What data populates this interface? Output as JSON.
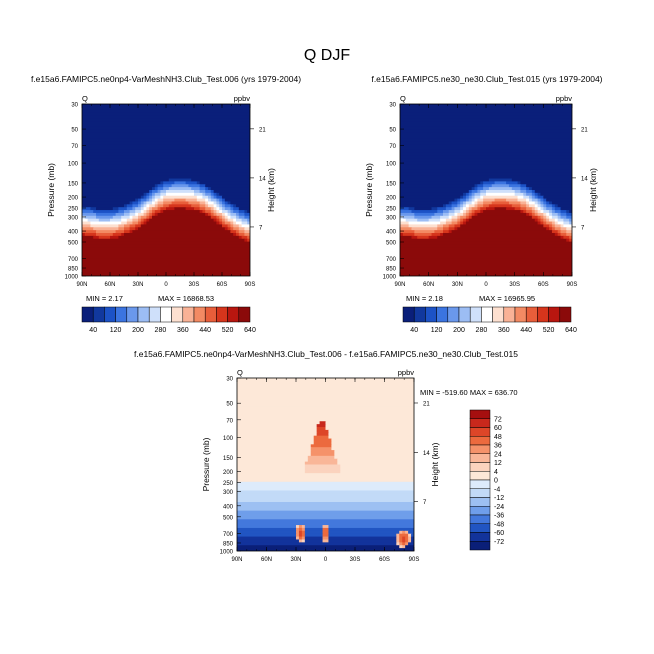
{
  "figure": {
    "title": "Q DJF"
  },
  "chart_data": [
    {
      "type": "heatmap",
      "title": "f.e15a6.FAMIPC5.ne0np4-VarMeshNH3.Club_Test.006 (yrs 1979-2004)",
      "variable": "Q",
      "units": "ppbv",
      "ylabel": "Pressure (mb)",
      "ylabel_right": "Height (km)",
      "xticks": [
        "90N",
        "60N",
        "30N",
        "0",
        "30S",
        "60S",
        "90S"
      ],
      "yticks": [
        "30",
        "50",
        "70",
        "100",
        "150",
        "200",
        "250",
        "300",
        "400",
        "500",
        "700",
        "850",
        "1000"
      ],
      "yticks_right": [
        "21",
        "14",
        "7"
      ],
      "ylim": [
        30,
        1000
      ],
      "ylog": true,
      "min_label": "MIN =   2.17",
      "max_label": "MAX = 16868.53",
      "tropopause_p": [
        250,
        260,
        270,
        270,
        260,
        240,
        220,
        190,
        165,
        150,
        145,
        145,
        150,
        160,
        180,
        210,
        240,
        270,
        290
      ],
      "levels": [
        "40",
        "120",
        "200",
        "280",
        "360",
        "440",
        "520",
        "640"
      ],
      "colors": [
        "#0a1f7a",
        "#11389e",
        "#1c52c6",
        "#3b74e0",
        "#6a98ec",
        "#9cbdf4",
        "#cfe0fa",
        "#ffffff",
        "#fde0d0",
        "#f9b296",
        "#f38a63",
        "#e85e3a",
        "#d6351c",
        "#b8160f",
        "#8b0a0a"
      ]
    },
    {
      "type": "heatmap",
      "title": "f.e15a6.FAMIPC5.ne30_ne30.Club_Test.015 (yrs 1979-2004)",
      "variable": "Q",
      "units": "ppbv",
      "ylabel": "Pressure (mb)",
      "ylabel_right": "Height (km)",
      "xticks": [
        "90N",
        "60N",
        "30N",
        "0",
        "30S",
        "60S",
        "90S"
      ],
      "yticks": [
        "30",
        "50",
        "70",
        "100",
        "150",
        "200",
        "250",
        "300",
        "400",
        "500",
        "700",
        "850",
        "1000"
      ],
      "yticks_right": [
        "21",
        "14",
        "7"
      ],
      "ylim": [
        30,
        1000
      ],
      "ylog": true,
      "min_label": "MIN =   2.18",
      "max_label": "MAX = 16965.95",
      "tropopause_p": [
        250,
        260,
        270,
        270,
        260,
        240,
        220,
        190,
        165,
        150,
        145,
        145,
        150,
        160,
        180,
        210,
        240,
        270,
        290
      ],
      "levels": [
        "40",
        "120",
        "200",
        "280",
        "360",
        "440",
        "520",
        "640"
      ],
      "colors": [
        "#0a1f7a",
        "#11389e",
        "#1c52c6",
        "#3b74e0",
        "#6a98ec",
        "#9cbdf4",
        "#cfe0fa",
        "#ffffff",
        "#fde0d0",
        "#f9b296",
        "#f38a63",
        "#e85e3a",
        "#d6351c",
        "#b8160f",
        "#8b0a0a"
      ]
    },
    {
      "type": "heatmap",
      "title": "f.e15a6.FAMIPC5.ne0np4-VarMeshNH3.Club_Test.006 - f.e15a6.FAMIPC5.ne30_ne30.Club_Test.015",
      "variable": "Q",
      "units": "ppbv",
      "ylabel": "Pressure (mb)",
      "ylabel_right": "Height (km)",
      "xticks": [
        "90N",
        "60N",
        "30N",
        "0",
        "30S",
        "60S",
        "90S"
      ],
      "yticks": [
        "30",
        "50",
        "70",
        "100",
        "150",
        "200",
        "250",
        "300",
        "400",
        "500",
        "700",
        "850",
        "1000"
      ],
      "yticks_right": [
        "21",
        "14",
        "7"
      ],
      "ylim": [
        30,
        1000
      ],
      "ylog": true,
      "min_max_label": "MIN = -519.60  MAX = 636.70",
      "levels": [
        "72",
        "60",
        "48",
        "36",
        "24",
        "12",
        "4",
        "0",
        "-4",
        "-12",
        "-24",
        "-36",
        "-48",
        "-60",
        "-72"
      ],
      "colors": [
        "#a50f0f",
        "#c8281c",
        "#dd4628",
        "#ec6a3e",
        "#f5926a",
        "#f9b698",
        "#fbd3be",
        "#fde8d8",
        "#ddebfb",
        "#c2daf7",
        "#9dc0f2",
        "#6f9eea",
        "#4378dc",
        "#2155c2",
        "#12339b",
        "#0a1f78"
      ]
    }
  ]
}
